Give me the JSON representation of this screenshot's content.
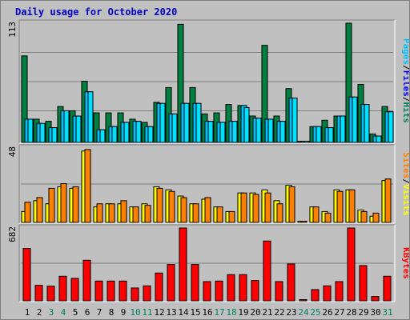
{
  "title": "Daily usage for October 2020",
  "colors": {
    "hits": "#008040",
    "files": "#00c0ff",
    "pages": "#00e0ff",
    "visits": "#ffff00",
    "sites": "#ff8000",
    "kbytes": "#ff0000",
    "weekend": "#00805c",
    "weekday": "#000000",
    "label_hits": "#00805c",
    "label_files": "#0000ff",
    "label_pages": "#00c0ff",
    "label_visits": "#ffff00",
    "label_sites": "#ff8000",
    "label_kbytes": "#ff0000"
  },
  "chart_data": [
    {
      "type": "bar",
      "name": "hits-files-pages",
      "ymax_label": "113",
      "ylim": [
        0,
        113
      ],
      "categories": [
        "1",
        "2",
        "3",
        "4",
        "5",
        "6",
        "7",
        "8",
        "9",
        "10",
        "11",
        "12",
        "13",
        "14",
        "15",
        "16",
        "17",
        "18",
        "19",
        "20",
        "21",
        "22",
        "23",
        "24",
        "25",
        "26",
        "27",
        "28",
        "29",
        "30",
        "31"
      ],
      "weekend_days": [
        "3",
        "4",
        "10",
        "11",
        "17",
        "18",
        "24",
        "25",
        "31"
      ],
      "series": [
        {
          "name": "Hits",
          "values": [
            82,
            22,
            20,
            34,
            30,
            58,
            28,
            28,
            28,
            22,
            19,
            38,
            52,
            112,
            52,
            27,
            28,
            36,
            35,
            25,
            92,
            25,
            51,
            1,
            15,
            21,
            25,
            113,
            55,
            8,
            34
          ]
        },
        {
          "name": "Files",
          "values": [
            22,
            18,
            14,
            30,
            25,
            48,
            12,
            15,
            19,
            20,
            15,
            37,
            27,
            37,
            37,
            20,
            19,
            20,
            35,
            23,
            22,
            20,
            42,
            0,
            15,
            14,
            25,
            43,
            36,
            6,
            29
          ]
        },
        {
          "name": "Pages",
          "values": [
            22,
            18,
            14,
            30,
            25,
            48,
            12,
            15,
            19,
            20,
            15,
            37,
            27,
            37,
            37,
            20,
            19,
            20,
            33,
            23,
            22,
            20,
            42,
            0,
            15,
            14,
            25,
            43,
            36,
            6,
            29
          ]
        }
      ],
      "legend": [
        "Hits",
        "Files",
        "Pages"
      ]
    },
    {
      "type": "bar",
      "name": "visits-sites",
      "ymax_label": "48",
      "ylim": [
        0,
        48
      ],
      "categories": [
        "1",
        "2",
        "3",
        "4",
        "5",
        "6",
        "7",
        "8",
        "9",
        "10",
        "11",
        "12",
        "13",
        "14",
        "15",
        "16",
        "17",
        "18",
        "19",
        "20",
        "21",
        "22",
        "23",
        "24",
        "25",
        "26",
        "27",
        "28",
        "29",
        "30",
        "31"
      ],
      "series": [
        {
          "name": "Visits",
          "values": [
            7,
            14,
            12,
            23,
            22,
            46,
            10,
            12,
            12,
            10,
            12,
            23,
            21,
            17,
            12,
            15,
            10,
            7,
            19,
            19,
            21,
            14,
            24,
            0,
            10,
            7,
            21,
            21,
            8,
            4,
            27
          ]
        },
        {
          "name": "Sites",
          "values": [
            13,
            16,
            22,
            25,
            23,
            47,
            12,
            12,
            14,
            10,
            11,
            22,
            20,
            16,
            12,
            16,
            10,
            7,
            19,
            18,
            19,
            12,
            23,
            0,
            10,
            6,
            20,
            21,
            7,
            6,
            28
          ]
        }
      ],
      "legend": [
        "Visits",
        "Sites"
      ]
    },
    {
      "type": "bar",
      "name": "kbytes",
      "ymax_label": "682",
      "ylim": [
        0,
        682
      ],
      "categories": [
        "1",
        "2",
        "3",
        "4",
        "5",
        "6",
        "7",
        "8",
        "9",
        "10",
        "11",
        "12",
        "13",
        "14",
        "15",
        "16",
        "17",
        "18",
        "19",
        "20",
        "21",
        "22",
        "23",
        "24",
        "25",
        "26",
        "27",
        "28",
        "29",
        "30",
        "31"
      ],
      "series": [
        {
          "name": "KBytes",
          "values": [
            490,
            145,
            137,
            230,
            210,
            380,
            185,
            185,
            185,
            120,
            140,
            260,
            340,
            682,
            340,
            180,
            185,
            245,
            245,
            190,
            560,
            180,
            345,
            0,
            105,
            140,
            180,
            682,
            330,
            40,
            230
          ]
        }
      ],
      "legend": [
        "KBytes"
      ]
    }
  ],
  "side_labels": {
    "top": [
      "Pages",
      "/",
      "Files",
      "/",
      "Hits"
    ],
    "mid": [
      "Sites",
      "/",
      "Visits"
    ],
    "bottom": [
      "KBytes"
    ]
  }
}
